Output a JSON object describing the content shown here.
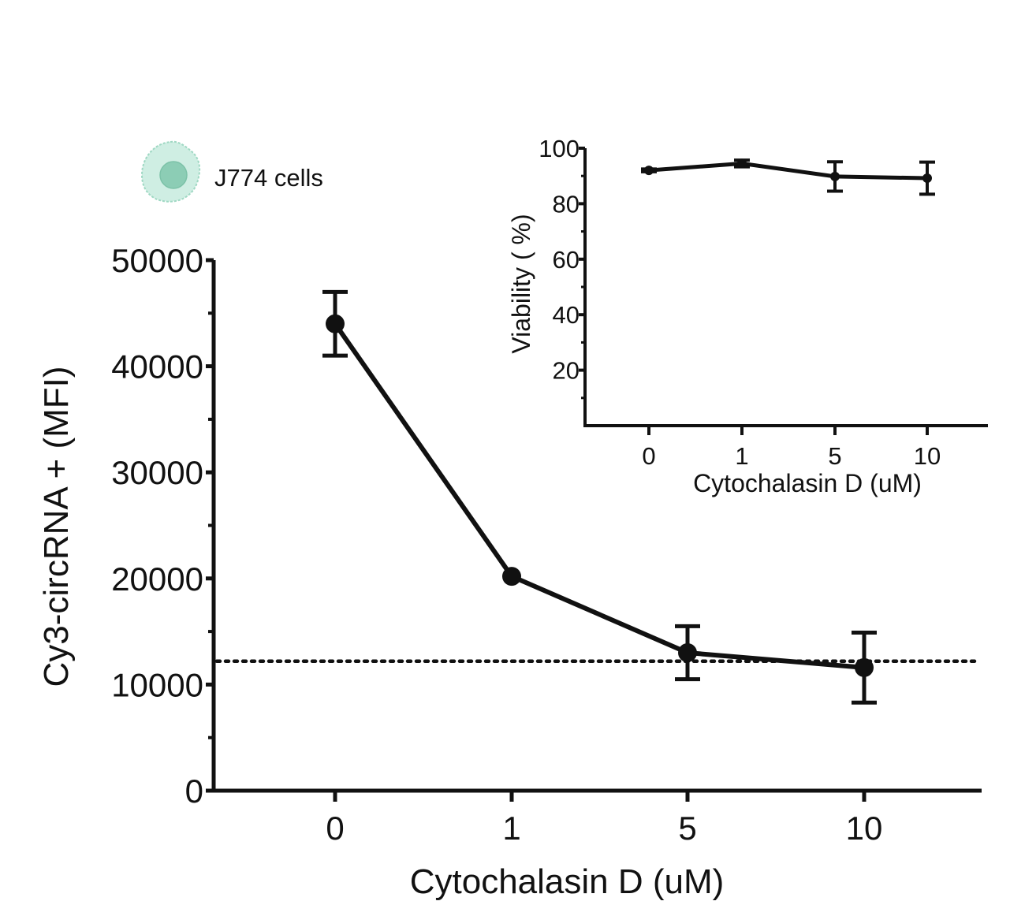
{
  "legend": {
    "label": "J774 cells",
    "icon": "cell-icon",
    "icon_color": "#9fd8c3"
  },
  "chart_data": [
    {
      "id": "main",
      "type": "line",
      "xlabel": "Cytochalasin D (uM)",
      "ylabel": "Cy3-circRNA + (MFI)",
      "categories": [
        "0",
        "1",
        "5",
        "10"
      ],
      "values": [
        44000,
        20200,
        13000,
        11600
      ],
      "error": [
        3000,
        0,
        2500,
        3300
      ],
      "reference_line": 12200,
      "ylim": [
        0,
        50000
      ],
      "yticks": [
        0,
        10000,
        20000,
        30000,
        40000,
        50000
      ],
      "ytick_labels": [
        "0",
        "10000",
        "20000",
        "30000",
        "40000",
        "50000"
      ],
      "color": "#111111"
    },
    {
      "id": "inset",
      "type": "line",
      "xlabel": "Cytochalasin D (uM)",
      "ylabel": "Viability ( %)",
      "categories": [
        "0",
        "1",
        "5",
        "10"
      ],
      "values": [
        92,
        94.5,
        89.8,
        89.2
      ],
      "error": [
        0.5,
        1.2,
        5.3,
        5.8
      ],
      "ylim": [
        0,
        100
      ],
      "yticks": [
        20,
        40,
        60,
        80,
        100
      ],
      "ytick_labels": [
        "20",
        "40",
        "60",
        "80",
        "100"
      ],
      "color": "#111111"
    }
  ]
}
